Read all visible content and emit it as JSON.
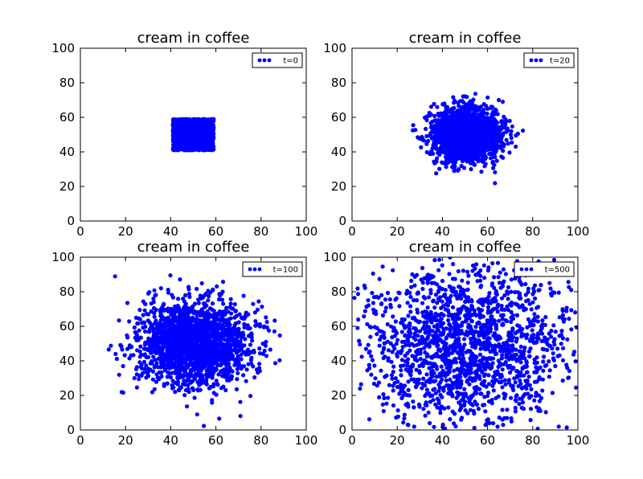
{
  "figure": {
    "marker_color": "#0000ff"
  },
  "chart_data": [
    {
      "type": "scatter",
      "title": "cream in coffee",
      "xlabel": "",
      "ylabel": "",
      "xlim": [
        0,
        100
      ],
      "ylim": [
        0,
        100
      ],
      "xticks": [
        "0",
        "20",
        "40",
        "60",
        "80",
        "100"
      ],
      "yticks": [
        "0",
        "20",
        "40",
        "60",
        "80",
        "100"
      ],
      "legend": {
        "label": "t=0",
        "placement": "top-right"
      },
      "distribution": {
        "kind": "square",
        "x_range": [
          41,
          59
        ],
        "y_range": [
          41,
          59
        ],
        "count": 2000
      }
    },
    {
      "type": "scatter",
      "title": "cream in coffee",
      "xlabel": "",
      "ylabel": "",
      "xlim": [
        0,
        100
      ],
      "ylim": [
        0,
        100
      ],
      "xticks": [
        "0",
        "20",
        "40",
        "60",
        "80",
        "100"
      ],
      "yticks": [
        "0",
        "20",
        "40",
        "60",
        "80",
        "100"
      ],
      "legend": {
        "label": "t=20",
        "placement": "top-right"
      },
      "distribution": {
        "kind": "gaussian",
        "center": [
          50,
          50
        ],
        "spread": 7.5,
        "count": 2000
      }
    },
    {
      "type": "scatter",
      "title": "cream in coffee",
      "xlabel": "",
      "ylabel": "",
      "xlim": [
        0,
        100
      ],
      "ylim": [
        0,
        100
      ],
      "xticks": [
        "0",
        "20",
        "40",
        "60",
        "80",
        "100"
      ],
      "yticks": [
        "0",
        "20",
        "40",
        "60",
        "80",
        "100"
      ],
      "legend": {
        "label": "t=100",
        "placement": "top-right"
      },
      "distribution": {
        "kind": "gaussian",
        "center": [
          50,
          50
        ],
        "spread": 12,
        "count": 2000
      }
    },
    {
      "type": "scatter",
      "title": "cream in coffee",
      "xlabel": "",
      "ylabel": "",
      "xlim": [
        0,
        100
      ],
      "ylim": [
        0,
        100
      ],
      "xticks": [
        "0",
        "20",
        "40",
        "60",
        "80",
        "100"
      ],
      "yticks": [
        "0",
        "20",
        "40",
        "60",
        "80",
        "100"
      ],
      "legend": {
        "label": "t=500",
        "placement": "top-right"
      },
      "distribution": {
        "kind": "gaussian",
        "center": [
          50,
          48
        ],
        "spread": 24,
        "count": 1800
      }
    }
  ]
}
